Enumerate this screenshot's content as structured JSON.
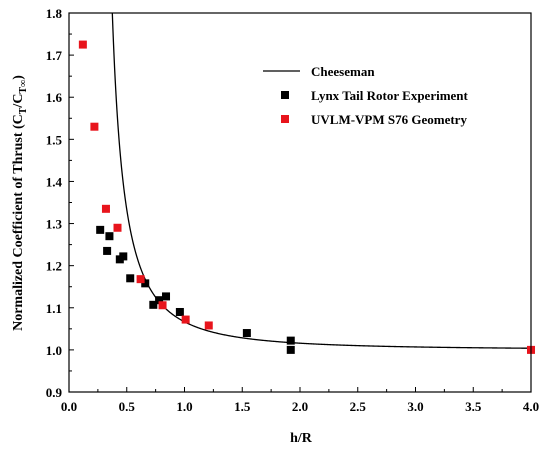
{
  "chart_data": {
    "type": "scatter",
    "title": "",
    "xlabel": "h/R",
    "ylabel": {
      "prefix": "Normalized Coefficient of Thrust (C",
      "sub1": "T",
      "mid": "/C",
      "sub2": "T∞",
      "suffix": ")"
    },
    "xlim": [
      0.0,
      4.0
    ],
    "ylim": [
      0.9,
      1.8
    ],
    "xticks": [
      0.0,
      0.5,
      1.0,
      1.5,
      2.0,
      2.5,
      3.0,
      3.5,
      4.0
    ],
    "xtick_labels": [
      "0.0",
      "0.5",
      "1.0",
      "1.5",
      "2.0",
      "2.5",
      "3.0",
      "3.5",
      "4.0"
    ],
    "yticks": [
      0.9,
      1.0,
      1.1,
      1.2,
      1.3,
      1.4,
      1.5,
      1.6,
      1.7,
      1.8
    ],
    "ytick_labels": [
      "0.9",
      "1.0",
      "1.1",
      "1.2",
      "1.3",
      "1.4",
      "1.5",
      "1.6",
      "1.7",
      "1.8"
    ],
    "grid": false,
    "legend_position": "top-right",
    "series": [
      {
        "name": "Cheeseman",
        "kind": "line",
        "color": "#000000",
        "formula": "1/(1-(1/(4*h/R))^2)"
      },
      {
        "name": "Lynx Tail Rotor Experiment",
        "kind": "scatter",
        "color": "#000000",
        "x": [
          0.27,
          0.33,
          0.35,
          0.44,
          0.47,
          0.53,
          0.66,
          0.73,
          0.78,
          0.84,
          0.96,
          1.54,
          1.92,
          1.92
        ],
        "y": [
          1.285,
          1.235,
          1.27,
          1.215,
          1.222,
          1.17,
          1.158,
          1.107,
          1.118,
          1.127,
          1.09,
          1.04,
          1.0,
          1.022
        ]
      },
      {
        "name": "UVLM-VPM S76 Geometry",
        "kind": "scatter",
        "color": "#e8141c",
        "x": [
          0.12,
          0.22,
          0.32,
          0.42,
          0.62,
          0.81,
          1.01,
          1.21,
          4.0
        ],
        "y": [
          1.725,
          1.53,
          1.335,
          1.29,
          1.168,
          1.106,
          1.072,
          1.058,
          1.0
        ]
      }
    ]
  }
}
